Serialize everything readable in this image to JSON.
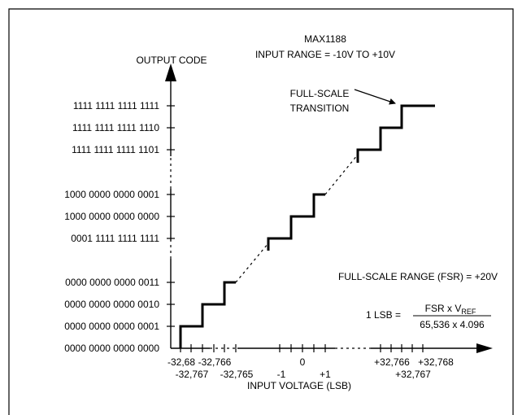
{
  "title": {
    "line1": "MAX1188",
    "line2": "INPUT RANGE = -10V TO +10V"
  },
  "y_axis_label": "OUTPUT CODE",
  "x_axis_label": "INPUT VOLTAGE (LSB)",
  "y_codes": [
    "1111 1111 1111 1111",
    "1111 1111 1111 1110",
    "1111 1111 1111 1101",
    "1000 0000 0000 0001",
    "1000 0000 0000 0000",
    "0001 1111 1111 1111",
    "0000 0000 0000 0011",
    "0000 0000 0000 0010",
    "0000 0000 0000 0001",
    "0000 0000 0000 0000"
  ],
  "x_ticks_upper": [
    "-32,68",
    "-32,766",
    "0",
    "+32,766",
    "+32,768"
  ],
  "x_ticks_lower": [
    "-32,767",
    "-32,765",
    "-1",
    "+1",
    "+32,767"
  ],
  "annotation": {
    "line1": "FULL-SCALE",
    "line2": "TRANSITION"
  },
  "fsr_label": "FULL-SCALE RANGE (FSR) = +20V",
  "formula": {
    "lhs": "1 LSB =",
    "num_main": "FSR x V",
    "num_sub": "REF",
    "den": "65,536 x 4.096"
  },
  "colors": {
    "line": "#000000",
    "frame": "#000000",
    "background": "#ffffff"
  }
}
